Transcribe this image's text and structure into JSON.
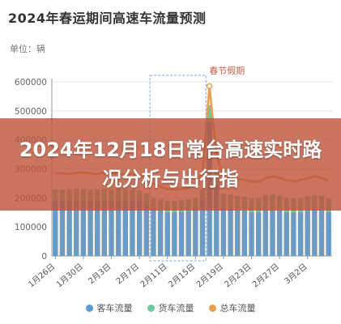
{
  "chart_data": {
    "type": "bar",
    "title": "2024年春运期间高速车流量预测",
    "unit_label": "单位：辆",
    "ylim": [
      0,
      600000
    ],
    "yticks": [
      "0",
      "100000",
      "200000",
      "300000",
      "400000",
      "500000",
      "600000"
    ],
    "xtick_labels": [
      "1月26日",
      "1月30日",
      "2月3日",
      "2月7日",
      "2月11日",
      "2月15日",
      "2月19日",
      "2月23日",
      "2月27日",
      "3月2日"
    ],
    "categories": [
      "1月26日",
      "1月27日",
      "1月28日",
      "1月29日",
      "1月30日",
      "1月31日",
      "2月1日",
      "2月2日",
      "2月3日",
      "2月4日",
      "2月5日",
      "2月6日",
      "2月7日",
      "2月8日",
      "2月9日",
      "2月10日",
      "2月11日",
      "2月12日",
      "2月13日",
      "2月14日",
      "2月15日",
      "2月16日",
      "2月17日",
      "2月18日",
      "2月19日",
      "2月20日",
      "2月21日",
      "2月22日",
      "2月23日",
      "2月24日",
      "2月25日",
      "2月26日",
      "2月27日",
      "2月28日",
      "2月29日",
      "3月1日",
      "3月2日",
      "3月3日",
      "3月4日",
      "3月5日"
    ],
    "series": [
      {
        "name": "客车流量",
        "color": "#5b9bd5",
        "values": [
          190000,
          190000,
          188000,
          190000,
          192000,
          190000,
          188000,
          192000,
          190000,
          190000,
          188000,
          190000,
          188000,
          180000,
          165000,
          158000,
          150000,
          150000,
          152000,
          155000,
          165000,
          195000,
          460000,
          250000,
          165000,
          162000,
          158000,
          155000,
          150000,
          150000,
          160000,
          162000,
          158000,
          150000,
          148000,
          150000,
          155000,
          160000,
          158000,
          150000
        ]
      },
      {
        "name": "货车流量",
        "color": "#6cc8a0",
        "values": [
          230000,
          228000,
          230000,
          232000,
          230000,
          228000,
          230000,
          232000,
          230000,
          232000,
          230000,
          228000,
          225000,
          215000,
          200000,
          195000,
          190000,
          190000,
          192000,
          195000,
          200000,
          230000,
          520000,
          290000,
          215000,
          212000,
          208000,
          205000,
          200000,
          200000,
          210000,
          212000,
          208000,
          200000,
          198000,
          200000,
          205000,
          210000,
          208000,
          198000
        ]
      },
      {
        "name": "总车流量",
        "color": "#e8a04e",
        "values": [
          285000,
          285000,
          282000,
          286000,
          288000,
          285000,
          282000,
          288000,
          285000,
          285000,
          280000,
          282000,
          280000,
          265000,
          250000,
          238000,
          230000,
          228000,
          230000,
          235000,
          245000,
          290000,
          585000,
          350000,
          270000,
          268000,
          265000,
          262000,
          258000,
          255000,
          268000,
          275000,
          270000,
          260000,
          258000,
          262000,
          268000,
          275000,
          270000,
          258000
        ]
      }
    ],
    "annotation": {
      "text": "春节假期",
      "from_index": 14,
      "to_index": 21
    },
    "legend_position": "bottom-center",
    "grid": "horizontal"
  },
  "banner": {
    "text": "2024年12月18日常台高速实时路况分析与出行指"
  }
}
